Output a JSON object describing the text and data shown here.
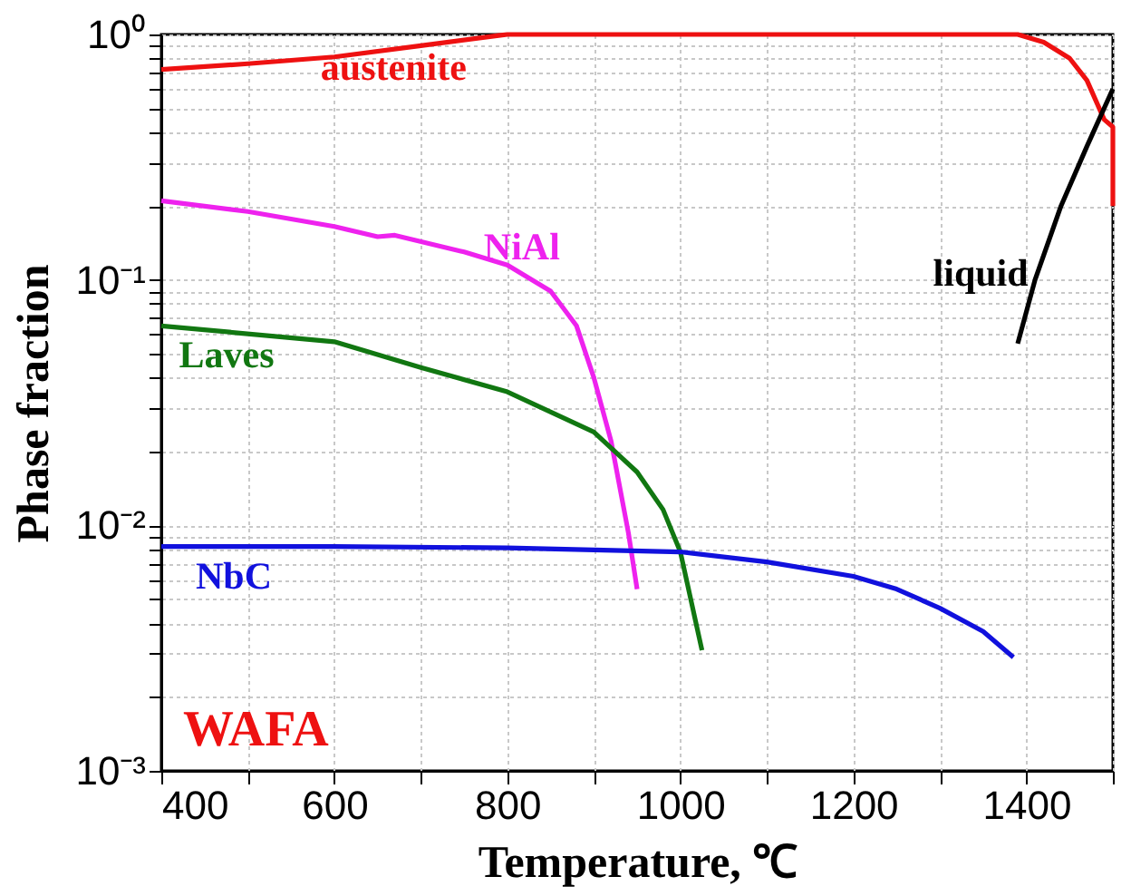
{
  "chart_data": {
    "type": "line",
    "xlabel": "Temperature, ℃",
    "ylabel": "Phase fraction",
    "annotations": [
      "WAFA"
    ],
    "log": "y",
    "grid": true,
    "marker": "none",
    "line_style": "solid",
    "xlim": [
      400,
      1500
    ],
    "ylim": [
      0.001,
      1
    ],
    "xticks": [
      400,
      {
        "value": 500,
        "label": null
      },
      600,
      {
        "value": 700,
        "label": null
      },
      800,
      {
        "value": 900,
        "label": null
      },
      1000,
      {
        "value": 1100,
        "label": null
      },
      1200,
      {
        "value": 1300,
        "label": null
      },
      1400,
      {
        "value": 1500,
        "label": null
      }
    ],
    "yticks": [
      {
        "value": 0.001,
        "label": "10⁻³"
      },
      {
        "value": 0.002,
        "label": null
      },
      {
        "value": 0.003,
        "label": null
      },
      {
        "value": 0.004,
        "label": null
      },
      {
        "value": 0.005,
        "label": null
      },
      {
        "value": 0.006,
        "label": null
      },
      {
        "value": 0.007,
        "label": null
      },
      {
        "value": 0.008,
        "label": null
      },
      {
        "value": 0.009,
        "label": null
      },
      {
        "value": 0.01,
        "label": "10⁻²"
      },
      {
        "value": 0.02,
        "label": null
      },
      {
        "value": 0.03,
        "label": null
      },
      {
        "value": 0.04,
        "label": null
      },
      {
        "value": 0.05,
        "label": null
      },
      {
        "value": 0.06,
        "label": null
      },
      {
        "value": 0.07,
        "label": null
      },
      {
        "value": 0.08,
        "label": null
      },
      {
        "value": 0.09,
        "label": null
      },
      {
        "value": 0.1,
        "label": "10⁻¹"
      },
      {
        "value": 0.2,
        "label": null
      },
      {
        "value": 0.3,
        "label": null
      },
      {
        "value": 0.4,
        "label": null
      },
      {
        "value": 0.5,
        "label": null
      },
      {
        "value": 0.6,
        "label": null
      },
      {
        "value": 0.7,
        "label": null
      },
      {
        "value": 0.8,
        "label": null
      },
      {
        "value": 0.9,
        "label": null
      },
      {
        "value": 1,
        "label": "10⁰"
      }
    ],
    "series": [
      {
        "name": "austenite",
        "color": "#ee1111",
        "x": [
          400,
          500,
          600,
          700,
          790,
          800,
          1000,
          1200,
          1390,
          1420,
          1450,
          1470,
          1490,
          1500,
          1500
        ],
        "values": [
          0.72,
          0.76,
          0.81,
          0.9,
          0.99,
          1.0,
          1.0,
          1.0,
          1.0,
          0.93,
          0.8,
          0.65,
          0.45,
          0.42,
          0.2
        ]
      },
      {
        "name": "NiAl",
        "color": "#ee22ee",
        "x": [
          400,
          500,
          600,
          650,
          670,
          750,
          800,
          850,
          880,
          900,
          920,
          940,
          950
        ],
        "values": [
          0.21,
          0.19,
          0.165,
          0.15,
          0.152,
          0.13,
          0.115,
          0.09,
          0.065,
          0.04,
          0.022,
          0.0093,
          0.0055
        ]
      },
      {
        "name": "Laves",
        "color": "#117711",
        "x": [
          400,
          600,
          700,
          800,
          900,
          950,
          980,
          1000,
          1025
        ],
        "values": [
          0.065,
          0.056,
          0.044,
          0.035,
          0.024,
          0.0165,
          0.0116,
          0.0078,
          0.0031
        ]
      },
      {
        "name": "NbC",
        "color": "#1111dd",
        "x": [
          400,
          600,
          800,
          1000,
          1100,
          1200,
          1250,
          1300,
          1350,
          1385
        ],
        "values": [
          0.0082,
          0.0082,
          0.0081,
          0.0078,
          0.0071,
          0.0062,
          0.0055,
          0.0046,
          0.0037,
          0.0029
        ]
      },
      {
        "name": "liquid",
        "color": "#000000",
        "x": [
          1390,
          1410,
          1440,
          1470,
          1500
        ],
        "values": [
          0.055,
          0.1,
          0.2,
          0.35,
          0.6
        ]
      }
    ]
  }
}
